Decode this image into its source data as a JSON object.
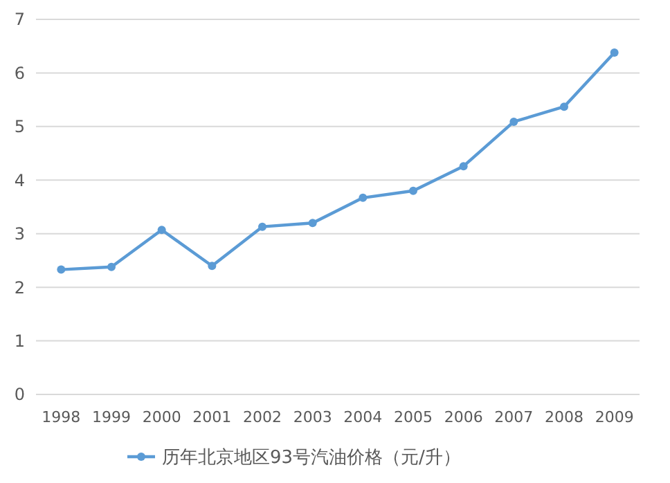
{
  "chart_data": {
    "type": "line",
    "categories": [
      "1998",
      "1999",
      "2000",
      "2001",
      "2002",
      "2003",
      "2004",
      "2005",
      "2006",
      "2007",
      "2008",
      "2009"
    ],
    "series": [
      {
        "name": "历年北京地区93号汽油价格（元/升）",
        "color": "#5b9bd5",
        "values": [
          2.33,
          2.38,
          3.07,
          2.4,
          3.13,
          3.2,
          3.67,
          3.8,
          4.26,
          5.09,
          5.37,
          6.38
        ]
      }
    ],
    "ylim": [
      0,
      7
    ],
    "yticks": [
      0,
      1,
      2,
      3,
      4,
      5,
      6,
      7
    ],
    "grid": "y",
    "legend": "bottom",
    "marker": "circle",
    "line_style": "solid"
  }
}
